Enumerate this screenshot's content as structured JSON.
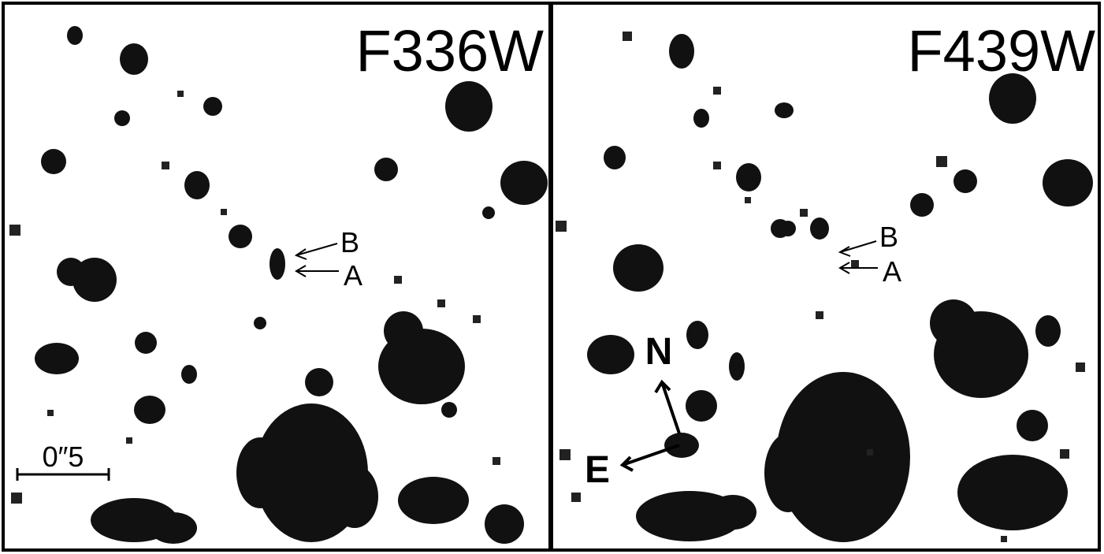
{
  "panels": [
    {
      "filter": "F336W",
      "star_labels": [
        "B",
        "A"
      ],
      "scale_bar": "0″5"
    },
    {
      "filter": "F439W",
      "star_labels": [
        "B",
        "A"
      ],
      "compass": [
        "N",
        "E"
      ]
    }
  ]
}
